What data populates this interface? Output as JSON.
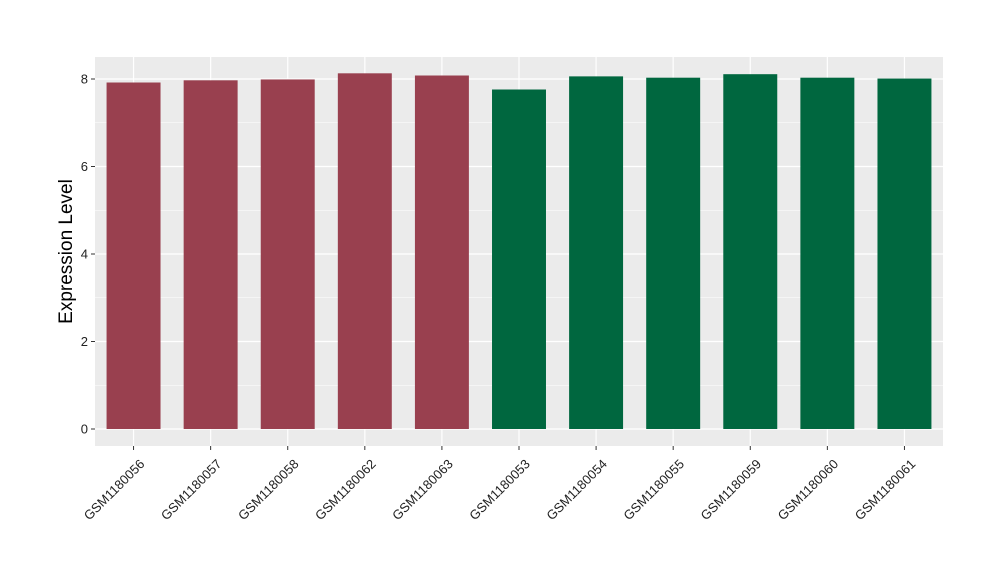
{
  "chart_data": {
    "type": "bar",
    "title": "",
    "xlabel": "",
    "ylabel": "Expression Level",
    "ylim": [
      0,
      8.4
    ],
    "yticks": [
      0,
      2,
      4,
      6,
      8
    ],
    "grid": true,
    "legend": "none",
    "categories": [
      "GSM1180056",
      "GSM1180057",
      "GSM1180058",
      "GSM1180062",
      "GSM1180063",
      "GSM1180053",
      "GSM1180054",
      "GSM1180055",
      "GSM1180059",
      "GSM1180060",
      "GSM1180061"
    ],
    "values": [
      7.92,
      7.97,
      7.99,
      8.13,
      8.08,
      7.76,
      8.06,
      8.03,
      8.11,
      8.03,
      8.01
    ],
    "bar_colors": [
      "#99404f",
      "#99404f",
      "#99404f",
      "#99404f",
      "#99404f",
      "#00673f",
      "#00673f",
      "#00673f",
      "#00673f",
      "#00673f",
      "#00673f"
    ],
    "panel_background": "#ebebeb",
    "gridline_color": "#ffffff"
  }
}
